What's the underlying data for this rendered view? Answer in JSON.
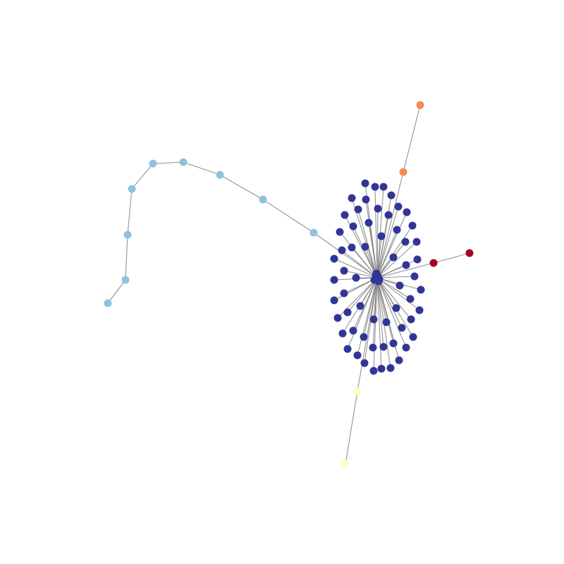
{
  "colors": {
    "background": "#ffffff",
    "edge": "#808080",
    "hub_cluster": "#313695",
    "chain": "#8fc3dd",
    "orange_branch": "#f28b51",
    "red_branch": "#a50026",
    "yellow_branch": "#ffffbf"
  },
  "graph": {
    "hub": "h",
    "chain_nodes": [
      "c1",
      "c2",
      "c3",
      "c4",
      "c5",
      "c6",
      "c7",
      "c8",
      "c9"
    ],
    "branches": [
      {
        "group": "orange_branch",
        "nodes": [
          "o1",
          "o2"
        ]
      },
      {
        "group": "red_branch",
        "nodes": [
          "r1",
          "r2"
        ]
      },
      {
        "group": "yellow_branch",
        "nodes": [
          "y1",
          "y2"
        ]
      }
    ],
    "leaf_count": 66,
    "leaf_group": "hub_cluster"
  }
}
